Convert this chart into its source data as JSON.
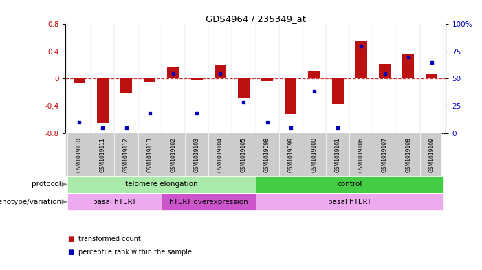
{
  "title": "GDS4964 / 235349_at",
  "samples": [
    "GSM1019110",
    "GSM1019111",
    "GSM1019112",
    "GSM1019113",
    "GSM1019102",
    "GSM1019103",
    "GSM1019104",
    "GSM1019105",
    "GSM1019098",
    "GSM1019099",
    "GSM1019100",
    "GSM1019101",
    "GSM1019106",
    "GSM1019107",
    "GSM1019108",
    "GSM1019109"
  ],
  "bar_values": [
    -0.07,
    -0.65,
    -0.22,
    -0.05,
    0.18,
    -0.02,
    0.2,
    -0.28,
    -0.04,
    -0.52,
    0.12,
    -0.38,
    0.55,
    0.22,
    0.37,
    0.08
  ],
  "dot_values": [
    10,
    5,
    5,
    18,
    55,
    18,
    55,
    28,
    10,
    5,
    38,
    5,
    80,
    55,
    70,
    65
  ],
  "ylim": [
    -0.8,
    0.8
  ],
  "yticks": [
    -0.8,
    -0.4,
    0.0,
    0.4,
    0.8
  ],
  "ytick_labels": [
    "-0.8",
    "-0.4",
    "0",
    "0.4",
    "0.8"
  ],
  "y2ticks": [
    0,
    25,
    50,
    75,
    100
  ],
  "y2tick_labels": [
    "0",
    "25",
    "50",
    "75",
    "100%"
  ],
  "bar_color": "#bb1111",
  "dot_color": "#0000bb",
  "zero_line_color": "#cc3333",
  "grid_color": "#000000",
  "protocol_labels": [
    {
      "text": "telomere elongation",
      "start": 0,
      "end": 7,
      "color": "#aaeaaa"
    },
    {
      "text": "control",
      "start": 8,
      "end": 15,
      "color": "#44cc44"
    }
  ],
  "genotype_labels": [
    {
      "text": "basal hTERT",
      "start": 0,
      "end": 3,
      "color": "#eeaaee"
    },
    {
      "text": "hTERT overexpression",
      "start": 4,
      "end": 7,
      "color": "#cc55cc"
    },
    {
      "text": "basal hTERT",
      "start": 8,
      "end": 15,
      "color": "#eeaaee"
    }
  ],
  "protocol_row_label": "protocol",
  "genotype_row_label": "genotype/variation",
  "legend_bar": "transformed count",
  "legend_dot": "percentile rank within the sample",
  "bg_color": "#ffffff",
  "tick_label_color_left": "#cc0000",
  "tick_label_color_right": "#0000cc",
  "sample_bg_color": "#cccccc"
}
